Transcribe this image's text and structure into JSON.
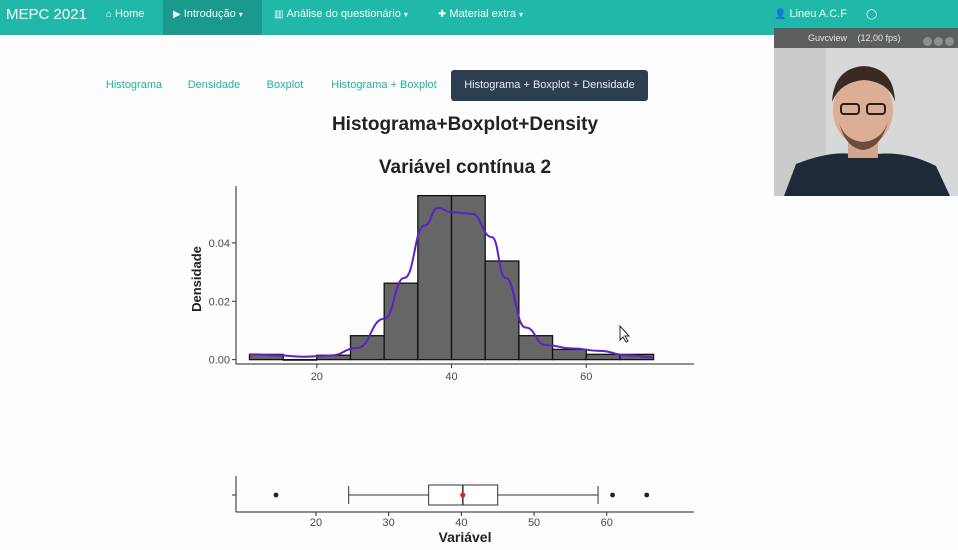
{
  "navbar": {
    "brand": "MEPC 2021",
    "items": [
      {
        "icon": "⌂",
        "label": "Home"
      },
      {
        "icon": "▶",
        "label": "Introdução",
        "caret": "▾"
      },
      {
        "icon": "▥",
        "label": "Análise do questionário",
        "caret": "▾"
      },
      {
        "icon": "✚",
        "label": "Material extra",
        "caret": "▾"
      },
      {
        "icon": "👤",
        "label": "Lineu A.C.F"
      },
      {
        "icon": "◯",
        "label": ""
      }
    ]
  },
  "tabs": [
    {
      "label": "Histograma"
    },
    {
      "label": "Densidade"
    },
    {
      "label": "Boxplot"
    },
    {
      "label": "Histograma + Boxplot"
    },
    {
      "label": "Histograma + Boxplot + Densidade"
    }
  ],
  "plot": {
    "title": "Histograma+Boxplot+Density",
    "subtitle": "Variável contínua 2"
  },
  "chart_data": [
    {
      "type": "bar",
      "title": "Variável contínua 2",
      "ylabel": "Densidade",
      "xlabel": "",
      "bin_edges": [
        10,
        15,
        20,
        25,
        30,
        35,
        40,
        45,
        50,
        55,
        60,
        65,
        70
      ],
      "values": [
        0.0018,
        0.0,
        0.0015,
        0.0082,
        0.0262,
        0.0562,
        0.0562,
        0.0338,
        0.0082,
        0.0035,
        0.0018,
        0.0018
      ],
      "density_curve": {
        "x": [
          10,
          14,
          18,
          22,
          26,
          30,
          33,
          36,
          38,
          40,
          43,
          46,
          48,
          51,
          54,
          58,
          62,
          66,
          70
        ],
        "y": [
          0.0018,
          0.0015,
          0.001,
          0.0014,
          0.004,
          0.014,
          0.028,
          0.046,
          0.052,
          0.0505,
          0.05,
          0.042,
          0.028,
          0.011,
          0.005,
          0.0038,
          0.003,
          0.0015,
          0.0008
        ]
      },
      "xlim": [
        8,
        76
      ],
      "ylim": [
        -0.0015,
        0.0595
      ],
      "x_ticks": [
        20,
        40,
        60
      ],
      "y_ticks": [
        0.0,
        0.02,
        0.04
      ],
      "y_tick_labels": [
        "0.00",
        "0.02",
        "0.04"
      ],
      "grid": false
    },
    {
      "type": "boxplot",
      "xlabel": "Variável",
      "min": 24.5,
      "q1": 35.5,
      "median": 40.2,
      "q3": 45,
      "max": 58.8,
      "mean": 40.2,
      "outliers": [
        14.5,
        60.8,
        65.5
      ],
      "xlim": [
        9,
        72
      ],
      "x_ticks": [
        20,
        30,
        40,
        50,
        60
      ],
      "grid": false
    }
  ],
  "webcam": {
    "title": "Guvcview",
    "fps": "(12,00 fps)"
  }
}
